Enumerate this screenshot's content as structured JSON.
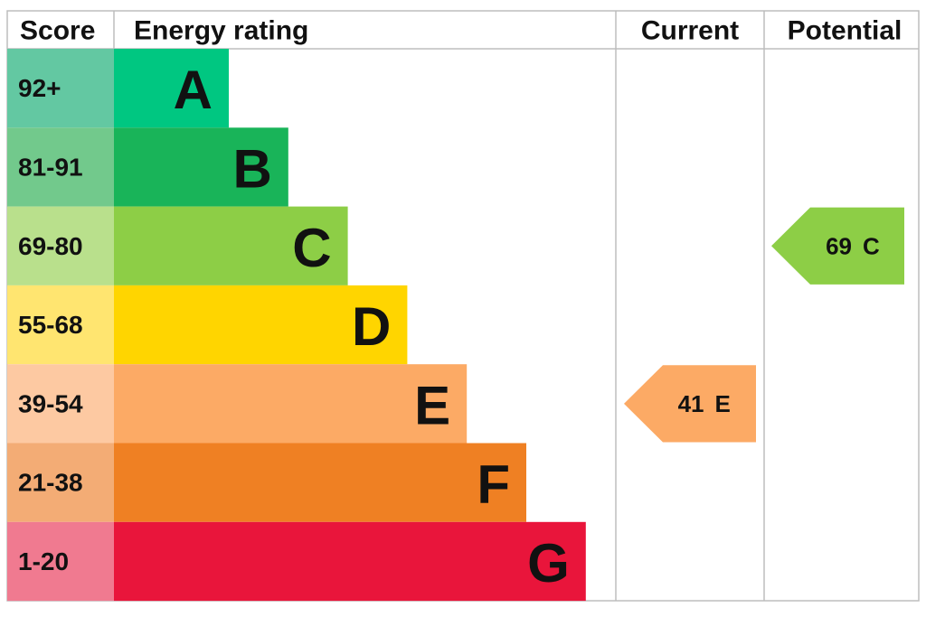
{
  "header": {
    "score": "Score",
    "rating": "Energy rating",
    "current": "Current",
    "potential": "Potential"
  },
  "rows": [
    {
      "score": "92+",
      "band": "A",
      "color": "#00c781",
      "score_color": "#63c8a2"
    },
    {
      "score": "81-91",
      "band": "B",
      "color": "#19b459",
      "score_color": "#72c98c"
    },
    {
      "score": "69-80",
      "band": "C",
      "color": "#8dce46",
      "score_color": "#b9e08c"
    },
    {
      "score": "55-68",
      "band": "D",
      "color": "#ffd500",
      "score_color": "#ffe570"
    },
    {
      "score": "39-54",
      "band": "E",
      "color": "#fcaa65",
      "score_color": "#fdc9a2"
    },
    {
      "score": "21-38",
      "band": "F",
      "color": "#ef8023",
      "score_color": "#f3ac75"
    },
    {
      "score": "1-20",
      "band": "G",
      "color": "#e9153b",
      "score_color": "#f07a90"
    }
  ],
  "current": {
    "value": "41",
    "band": "E"
  },
  "potential": {
    "value": "69",
    "band": "C"
  }
}
